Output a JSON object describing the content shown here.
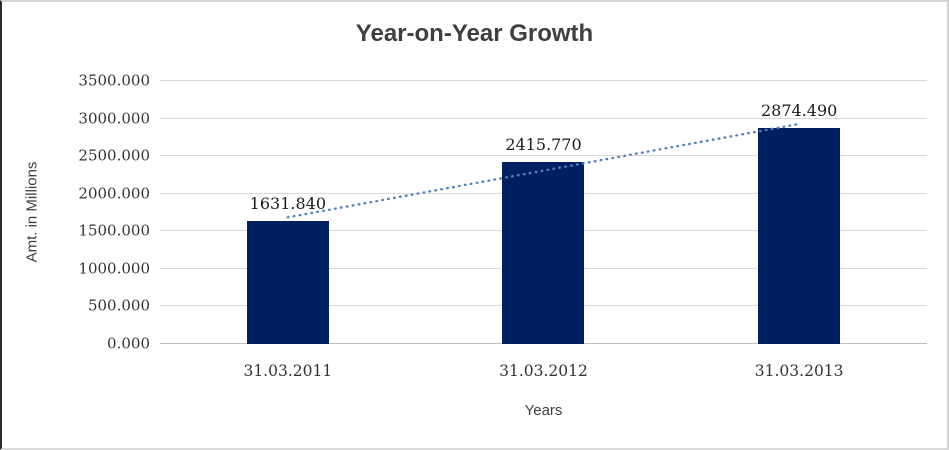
{
  "chart_data": {
    "type": "bar",
    "title": "Year-on-Year Growth",
    "categories": [
      "31.03.2011",
      "31.03.2012",
      "31.03.2013"
    ],
    "values": [
      1631.84,
      2415.77,
      2874.49
    ],
    "data_labels": [
      "1631.840",
      "2415.770",
      "2874.490"
    ],
    "xlabel": "Years",
    "ylabel": "Amt. in Millions",
    "ylim": [
      0,
      3500
    ],
    "ytick_step": 500,
    "ytick_labels": [
      "0.000",
      "500.000",
      "1000.000",
      "1500.000",
      "2000.000",
      "2500.000",
      "3000.000",
      "3500.000"
    ],
    "grid": true,
    "legend": "none",
    "trendline": {
      "type": "linear",
      "style": "dotted"
    },
    "colors": {
      "bar": "#002060",
      "trendline": "#4f81bd",
      "gridline": "#d9d9d9",
      "axis_line": "#bfbfbf",
      "title_text": "#3f3f3f",
      "tick_text": "#333333",
      "data_label_text": "#1a1a1a"
    }
  }
}
